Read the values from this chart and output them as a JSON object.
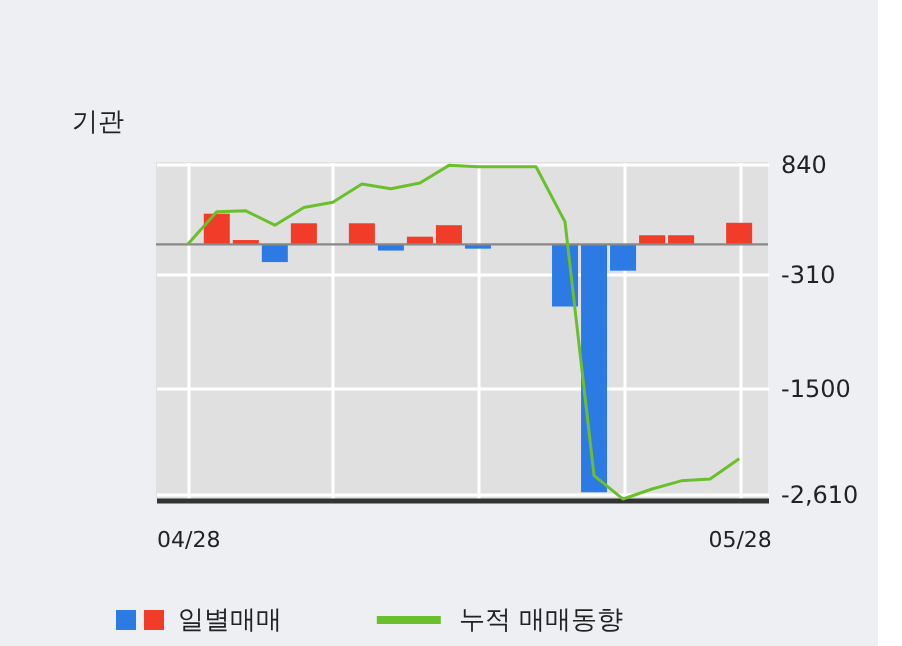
{
  "chart_data": {
    "type": "bar",
    "title": "기관",
    "categories": [
      "04/28",
      null,
      null,
      null,
      null,
      null,
      null,
      null,
      null,
      null,
      null,
      null,
      null,
      null,
      null,
      null,
      null,
      null,
      null,
      "05/28"
    ],
    "series": [
      {
        "name": "일별매매",
        "values": [
          0,
          320,
          45,
          -185,
          220,
          0,
          220,
          -65,
          80,
          200,
          -45,
          0,
          0,
          -650,
          -2590,
          -275,
          95,
          95,
          0,
          225
        ],
        "colors": [
          "#f03c28",
          "#f03c28",
          "#f03c28",
          "#2c7be5",
          "#f03c28",
          "#f03c28",
          "#f03c28",
          "#2c7be5",
          "#f03c28",
          "#f03c28",
          "#2c7be5",
          "#f03c28",
          "#f03c28",
          "#2c7be5",
          "#2c7be5",
          "#2c7be5",
          "#f03c28",
          "#f03c28",
          "#f03c28",
          "#f03c28"
        ]
      },
      {
        "name": "누적 매매동향",
        "type": "line",
        "color": "#6cbf2c",
        "values": [
          0,
          340,
          350,
          200,
          385,
          440,
          630,
          580,
          640,
          825,
          810,
          810,
          810,
          235,
          -2415,
          -2660,
          -2555,
          -2470,
          -2450,
          -2240
        ]
      }
    ],
    "ylim": [
      -2670,
      860
    ],
    "yticks": [
      840,
      -310,
      -1500,
      {
        "value": -2610,
        "label": "-2,610"
      }
    ],
    "ref_lines": [
      {
        "axis": "y",
        "value": 0,
        "color": "#888888"
      }
    ],
    "grid": true,
    "legend": "bottom left",
    "marker": "none",
    "line_style": "solid"
  }
}
